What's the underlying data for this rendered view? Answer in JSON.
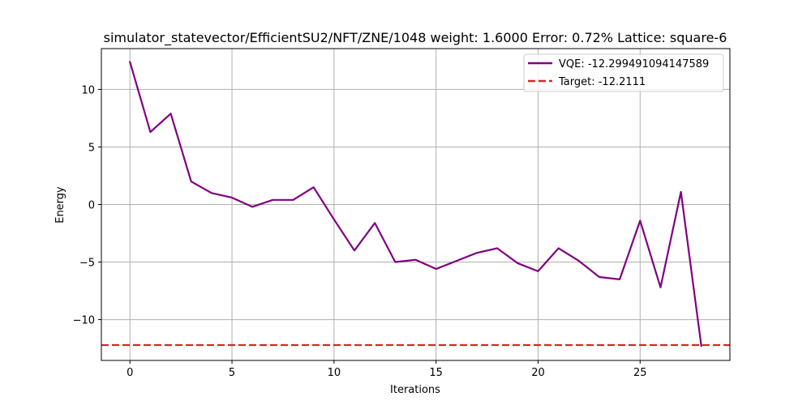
{
  "chart_data": {
    "type": "line",
    "title": "simulator_statevector/EfficientSU2/NFT/ZNE/1048 weight: 1.6000 Error: 0.72% Lattice: square-6",
    "xlabel": "Iterations",
    "ylabel": "Energy",
    "xlim": [
      -1.4,
      29.4
    ],
    "ylim": [
      -13.55,
      13.55
    ],
    "xticks": [
      0,
      5,
      10,
      15,
      20,
      25
    ],
    "yticks": [
      -10,
      -5,
      0,
      5,
      10
    ],
    "grid": true,
    "legend_position": "upper right",
    "series": [
      {
        "name": "VQE: -12.299491094147589",
        "color": "#800080",
        "style": "solid",
        "x": [
          0,
          1,
          2,
          3,
          4,
          5,
          6,
          7,
          8,
          9,
          10,
          11,
          12,
          13,
          14,
          15,
          16,
          17,
          18,
          19,
          20,
          21,
          22,
          23,
          24,
          25,
          26,
          27,
          28
        ],
        "y": [
          12.4,
          6.3,
          7.9,
          2.0,
          1.0,
          0.6,
          -0.2,
          0.4,
          0.4,
          1.5,
          -1.3,
          -4.0,
          -1.6,
          -5.0,
          -4.8,
          -5.6,
          -4.9,
          -4.2,
          -3.8,
          -5.1,
          -5.8,
          -3.8,
          -4.9,
          -6.3,
          -6.5,
          -1.4,
          -7.2,
          1.1,
          -12.3
        ]
      },
      {
        "name": "Target: -12.2111",
        "color": "#d62728",
        "style": "dashed",
        "y_constant": -12.2111
      }
    ]
  }
}
